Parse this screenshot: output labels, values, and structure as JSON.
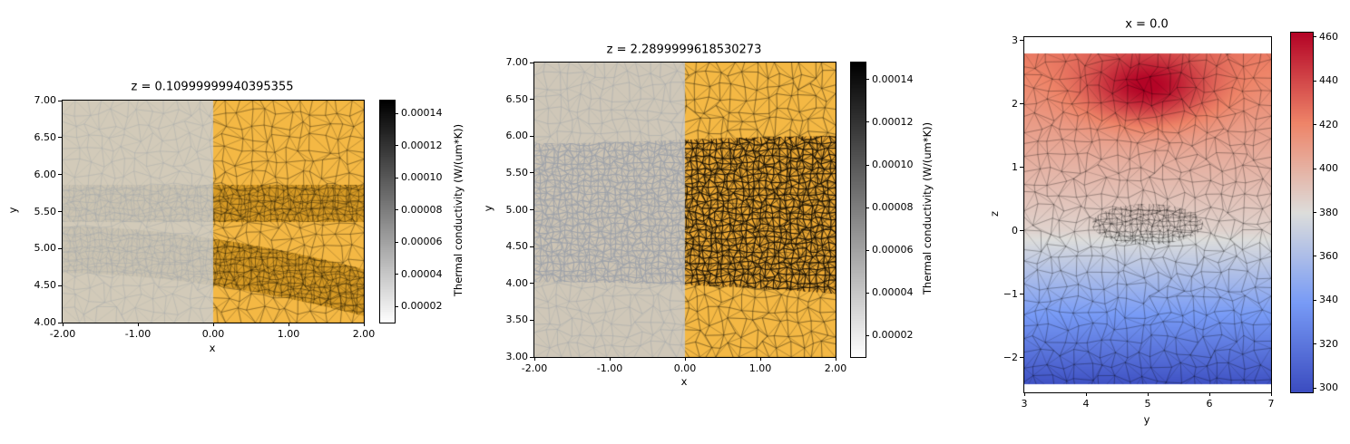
{
  "background": "#ffffff",
  "chart_data": [
    {
      "type": "heatmap",
      "subtype": "triangular-mesh-slice",
      "title": "z = 0.10999999940395355",
      "xlabel": "x",
      "ylabel": "y",
      "xlim": [
        -2,
        2
      ],
      "ylim": [
        4,
        7
      ],
      "xticks": [
        -2,
        -1,
        0,
        1,
        2
      ],
      "xtick_labels": [
        "-2.00",
        "-1.00",
        "0.00",
        "1.00",
        "2.00"
      ],
      "yticks": [
        7,
        6.5,
        6,
        5.5,
        5,
        4.5,
        4
      ],
      "ytick_labels": [
        "7.00",
        "6.50",
        "6.00",
        "5.50",
        "5.00",
        "4.50",
        "4.00"
      ],
      "grid": false,
      "description": "FEM triangular mesh slice at z=0.11: orange material for x>0, semi-transparent gray-blue shading for x<0; darker high-conductivity strip between y=5.36 and y=5.86 and a curved darker band from y~5.3 (left) sloping down to y~4.1 (right).",
      "colorbar": {
        "label": "Thermal conductivity (W/(um*K))",
        "colormap": "greys",
        "vmin": 1e-05,
        "vmax": 0.000148,
        "ticks": [
          2e-05,
          4e-05,
          6e-05,
          8e-05,
          0.0001,
          0.00012,
          0.00014
        ],
        "tick_labels": [
          "0.00002",
          "0.00004",
          "0.00006",
          "0.00008",
          "0.00010",
          "0.00012",
          "0.00014"
        ]
      },
      "render": {
        "base_color": "#f4b844",
        "band_color": "#d89b25",
        "mesh_color": "rgba(55,40,10,0.55)",
        "mesh_cell": 14,
        "band_mesh_cell": 7,
        "band_mesh_color": "rgba(45,32,8,0.6)",
        "band_mesh_width": 0.5,
        "overlay_color": "rgba(200,207,218,0.78)",
        "overlay_x": [
          -2,
          0
        ],
        "bands": [
          {
            "type": "strip",
            "top": 5.86,
            "bottom": 5.36
          },
          {
            "type": "curve",
            "top_left": 5.3,
            "top_right": 4.72,
            "width": 0.63,
            "pow": 1.8
          }
        ]
      }
    },
    {
      "type": "heatmap",
      "subtype": "triangular-mesh-slice",
      "title": "z = 2.2899999618530273",
      "xlabel": "x",
      "ylabel": "y",
      "xlim": [
        -2,
        2
      ],
      "ylim": [
        3,
        7
      ],
      "xticks": [
        -2,
        -1,
        0,
        1,
        2
      ],
      "xtick_labels": [
        "-2.00",
        "-1.00",
        "0.00",
        "1.00",
        "2.00"
      ],
      "yticks": [
        7,
        6.5,
        6,
        5.5,
        5,
        4.5,
        4,
        3.5,
        3
      ],
      "ytick_labels": [
        "7.00",
        "6.50",
        "6.00",
        "5.50",
        "5.00",
        "4.50",
        "4.00",
        "3.50",
        "3.00"
      ],
      "grid": false,
      "description": "FEM triangular mesh slice at z=2.29: orange material for x>0 with a very dense darker-meshed band between y~4.0 and y~5.9-6.0; gray-blue shaded region for x<0.",
      "colorbar": {
        "label": "Thermal conductivity (W/(um*K))",
        "colormap": "greys",
        "vmin": 1e-05,
        "vmax": 0.000148,
        "ticks": [
          2e-05,
          4e-05,
          6e-05,
          8e-05,
          0.0001,
          0.00012,
          0.00014
        ],
        "tick_labels": [
          "0.00002",
          "0.00004",
          "0.00006",
          "0.00008",
          "0.00010",
          "0.00012",
          "0.00014"
        ]
      },
      "render": {
        "base_color": "#f4b844",
        "band_color": "#eca833",
        "mesh_color": "rgba(45,35,10,0.6)",
        "mesh_cell": 13,
        "band_mesh_cell": 7,
        "band_mesh_color": "rgba(22,16,5,0.85)",
        "band_mesh_width": 0.9,
        "overlay_color": "rgba(196,204,217,0.78)",
        "overlay_x": [
          -2,
          0
        ],
        "bands": [
          {
            "type": "curveband",
            "top_left": 5.9,
            "top_right": 6.0,
            "bottom_left": 4.02,
            "bottom_right": 3.86
          }
        ]
      }
    },
    {
      "type": "heatmap",
      "subtype": "temperature-field-slice",
      "title": "x = 0.0",
      "xlabel": "y",
      "ylabel": "z",
      "xlim": [
        3,
        7
      ],
      "ylim": [
        -2.55,
        3.05
      ],
      "xticks": [
        3,
        4,
        5,
        6,
        7
      ],
      "xtick_labels": [
        "3",
        "4",
        "5",
        "6",
        "7"
      ],
      "yticks": [
        3,
        2,
        1,
        0,
        -1,
        -2
      ],
      "ytick_labels": [
        "3",
        "2",
        "1",
        "0",
        "−1",
        "−2"
      ],
      "grid": false,
      "description": "Temperature field on the x=0 plane (coolwarm colormap): hot spot ~460 centered near (y=5, z=2.25), smoothly cooling to ~300 at the bottom (z~-2.4); faint triangular mesh overlaid with a denser cluster near (y=5, z=0.1).",
      "colorbar": {
        "label": "",
        "colormap": "coolwarm",
        "vmin": 298,
        "vmax": 462,
        "ticks": [
          300,
          320,
          340,
          360,
          380,
          400,
          420,
          440,
          460
        ],
        "tick_labels": [
          "300",
          "320",
          "340",
          "360",
          "380",
          "400",
          "420",
          "440",
          "460"
        ]
      },
      "render": {
        "z_top": 2.8,
        "z_bottom": -2.42,
        "base_stops": [
          [
            -2.42,
            301
          ],
          [
            0,
            385
          ],
          [
            1.5,
            407
          ],
          [
            2.8,
            424
          ]
        ],
        "hotspot": {
          "y": 5.0,
          "z": 2.25,
          "sy": 1.0,
          "sz": 0.55,
          "amp": 46
        },
        "mesh_cell": 15,
        "mesh_color": "rgba(0,0,0,0.33)",
        "dense": {
          "y": 5.0,
          "z": 0.1,
          "ry": 0.9,
          "rz": 0.32,
          "cell": 6
        }
      }
    }
  ]
}
